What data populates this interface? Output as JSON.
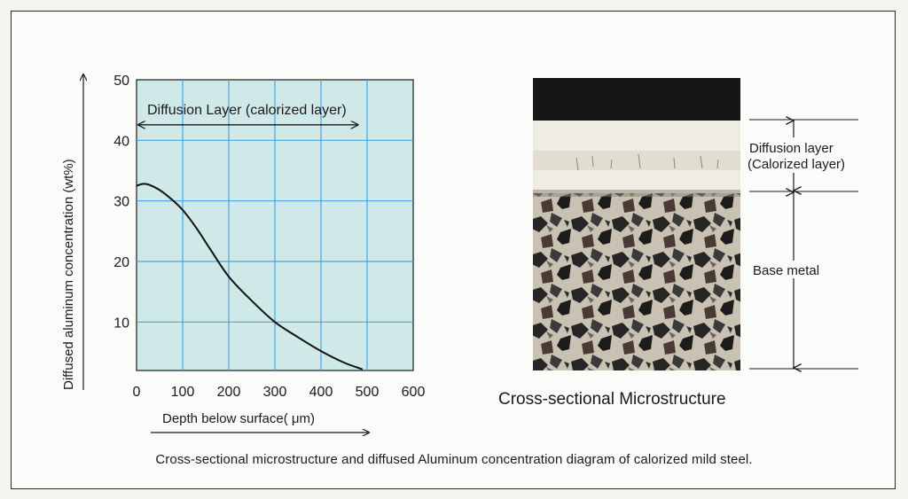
{
  "chart_data": {
    "type": "line",
    "title": "",
    "xlabel": "Depth below surface( μm)",
    "ylabel": "Diffused aluminum concentration  (wt%)",
    "xlim": [
      0,
      600
    ],
    "ylim": [
      2,
      50
    ],
    "x_ticks": [
      0,
      100,
      200,
      300,
      400,
      500,
      600
    ],
    "y_ticks": [
      10,
      20,
      30,
      40,
      50
    ],
    "grid": true,
    "background_color": "#cfe9e8",
    "grid_color": "#4aa3df",
    "series": [
      {
        "name": "",
        "x": [
          0,
          20,
          50,
          80,
          100,
          130,
          160,
          200,
          250,
          300,
          350,
          400,
          450,
          490
        ],
        "y": [
          32.5,
          32.8,
          31.8,
          30.0,
          28.5,
          25.5,
          22.0,
          17.5,
          13.5,
          10.0,
          7.5,
          5.2,
          3.3,
          2.2
        ]
      }
    ],
    "annotations": [
      {
        "text": "Diffusion Layer (calorized layer)",
        "x_from": 0,
        "x_to": 480,
        "y": 43
      }
    ]
  },
  "micrograph": {
    "title": "Cross-sectional Microstructure",
    "labels": {
      "diffusion_line1": "Diffusion layer",
      "diffusion_line2": "(Calorized layer)",
      "base": "Base metal"
    }
  },
  "caption": "Cross-sectional microstructure and diffused Aluminum concentration diagram of calorized mild steel."
}
